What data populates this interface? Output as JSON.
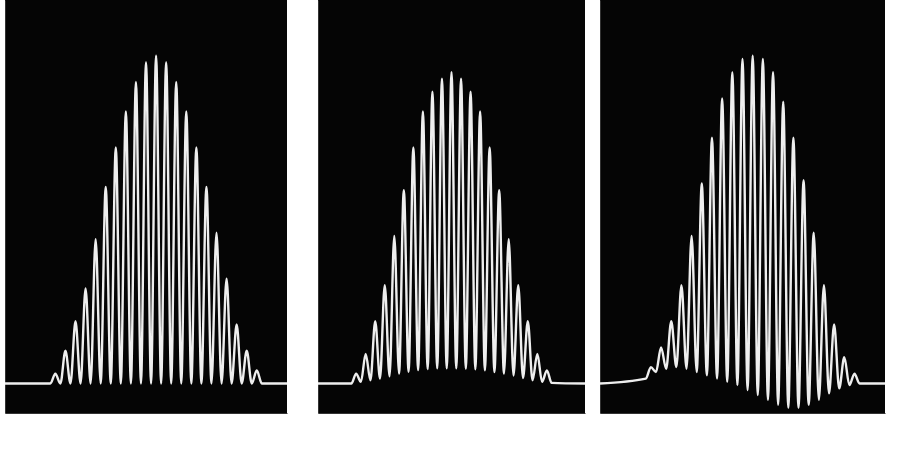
{
  "chart_data": [
    {
      "type": "line",
      "color": "#eeeeee",
      "grid": false,
      "tick_labels": false,
      "xlim": [
        0,
        28
      ],
      "ylim": [
        -9,
        117
      ],
      "x": [
        0,
        4.5,
        5,
        5.5,
        6,
        6.5,
        7,
        7.5,
        8,
        8.5,
        9,
        9.5,
        10,
        10.5,
        11,
        11.5,
        12,
        12.5,
        13,
        13.5,
        14,
        14.5,
        15,
        15.5,
        16,
        16.5,
        17,
        17.5,
        18,
        18.5,
        19,
        19.5,
        20,
        20.5,
        21,
        21.5,
        22,
        22.5,
        23,
        23.5,
        24,
        24.5,
        25,
        25.5,
        28
      ],
      "values": [
        0,
        0,
        3,
        0,
        10,
        0,
        19,
        0,
        29,
        0,
        44,
        0,
        60,
        0,
        72,
        0,
        83,
        0,
        92,
        0,
        98,
        0,
        100,
        0,
        98,
        0,
        92,
        0,
        83,
        0,
        72,
        0,
        60,
        0,
        46,
        0,
        32,
        0,
        18,
        0,
        10,
        0,
        4,
        0,
        0
      ]
    },
    {
      "type": "line",
      "color": "#eeeeee",
      "grid": false,
      "tick_labels": false,
      "xlim": [
        0,
        28
      ],
      "ylim": [
        -9,
        117
      ],
      "x": [
        0,
        3.5,
        4,
        4.5,
        5,
        5.5,
        6,
        6.5,
        7,
        7.5,
        8,
        8.5,
        9,
        9.5,
        10,
        10.5,
        11,
        11.5,
        12,
        12.5,
        13,
        13.5,
        14,
        14.5,
        15,
        15.5,
        16,
        16.5,
        17,
        17.5,
        18,
        18.5,
        19,
        19.5,
        20,
        20.5,
        21,
        21.5,
        22,
        22.5,
        23,
        23.5,
        24,
        24.5,
        28
      ],
      "values": [
        0,
        0,
        3,
        0.5,
        9,
        1,
        19,
        1.5,
        30,
        2.2,
        45,
        3,
        59,
        3.6,
        72,
        4.1,
        83,
        4.4,
        89,
        4.6,
        93,
        4.6,
        95,
        4.6,
        93,
        4.5,
        89,
        4.3,
        83,
        4,
        72,
        3.5,
        59,
        3,
        44,
        2.4,
        30,
        1.7,
        19,
        1,
        9,
        0.5,
        4,
        0.2,
        0
      ]
    },
    {
      "type": "line",
      "color": "#eeeeee",
      "grid": false,
      "tick_labels": false,
      "xlim": [
        0,
        28
      ],
      "ylim": [
        -9,
        117
      ],
      "x": [
        0,
        4.5,
        5,
        5.5,
        6,
        6.5,
        7,
        7.5,
        8,
        8.5,
        9,
        9.5,
        10,
        10.5,
        11,
        11.5,
        12,
        12.5,
        13,
        13.5,
        14,
        14.5,
        15,
        15.5,
        16,
        16.5,
        17,
        17.5,
        18,
        18.5,
        19,
        19.5,
        20,
        20.5,
        21,
        21.5,
        22,
        22.5,
        23,
        23.5,
        24,
        24.5,
        25,
        25.5,
        28
      ],
      "values": [
        0,
        1.5,
        5,
        3.5,
        11,
        4.5,
        19,
        5,
        30,
        4.5,
        45,
        3.5,
        61,
        2.5,
        75,
        1.5,
        87,
        0.5,
        95,
        -0.5,
        99,
        -2,
        100,
        -3.5,
        99,
        -5,
        95,
        -6.5,
        86,
        -7.4,
        75,
        -7.4,
        62,
        -6.5,
        46,
        -5,
        30,
        -3,
        18,
        -1.5,
        8,
        -0.5,
        3,
        0,
        0
      ]
    }
  ]
}
